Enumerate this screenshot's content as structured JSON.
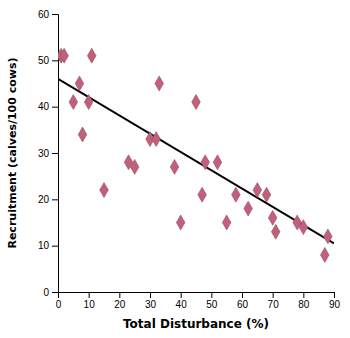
{
  "chart_data": {
    "type": "scatter",
    "xlabel": "Total Disturbance (%)",
    "ylabel": "Recruitment (calves/100 cows)",
    "series": [
      {
        "type": "scatter",
        "marker": "diamond",
        "color": "#c0607a",
        "x": [
          1,
          2,
          5,
          7,
          8,
          10,
          11,
          15,
          23,
          25,
          30,
          32,
          33,
          38,
          40,
          45,
          47,
          48,
          52,
          55,
          58,
          62,
          65,
          68,
          70,
          71,
          78,
          80,
          87,
          88
        ],
        "values": [
          51,
          51,
          41,
          45,
          34,
          41,
          51,
          22,
          28,
          27,
          33,
          33,
          45,
          27,
          15,
          41,
          21,
          28,
          28,
          15,
          21,
          18,
          22,
          21,
          16,
          13,
          15,
          14,
          8,
          12
        ]
      },
      {
        "type": "line",
        "line_style": "solid",
        "color": "#000000",
        "x": [
          0,
          90
        ],
        "values": [
          46,
          10.5
        ]
      }
    ],
    "xlim": [
      0,
      90
    ],
    "ylim": [
      0,
      60
    ],
    "xticks": [
      0,
      10,
      20,
      30,
      40,
      50,
      60,
      70,
      80,
      90
    ],
    "yticks": [
      0,
      10,
      20,
      30,
      40,
      50,
      60
    ],
    "grid": false
  }
}
